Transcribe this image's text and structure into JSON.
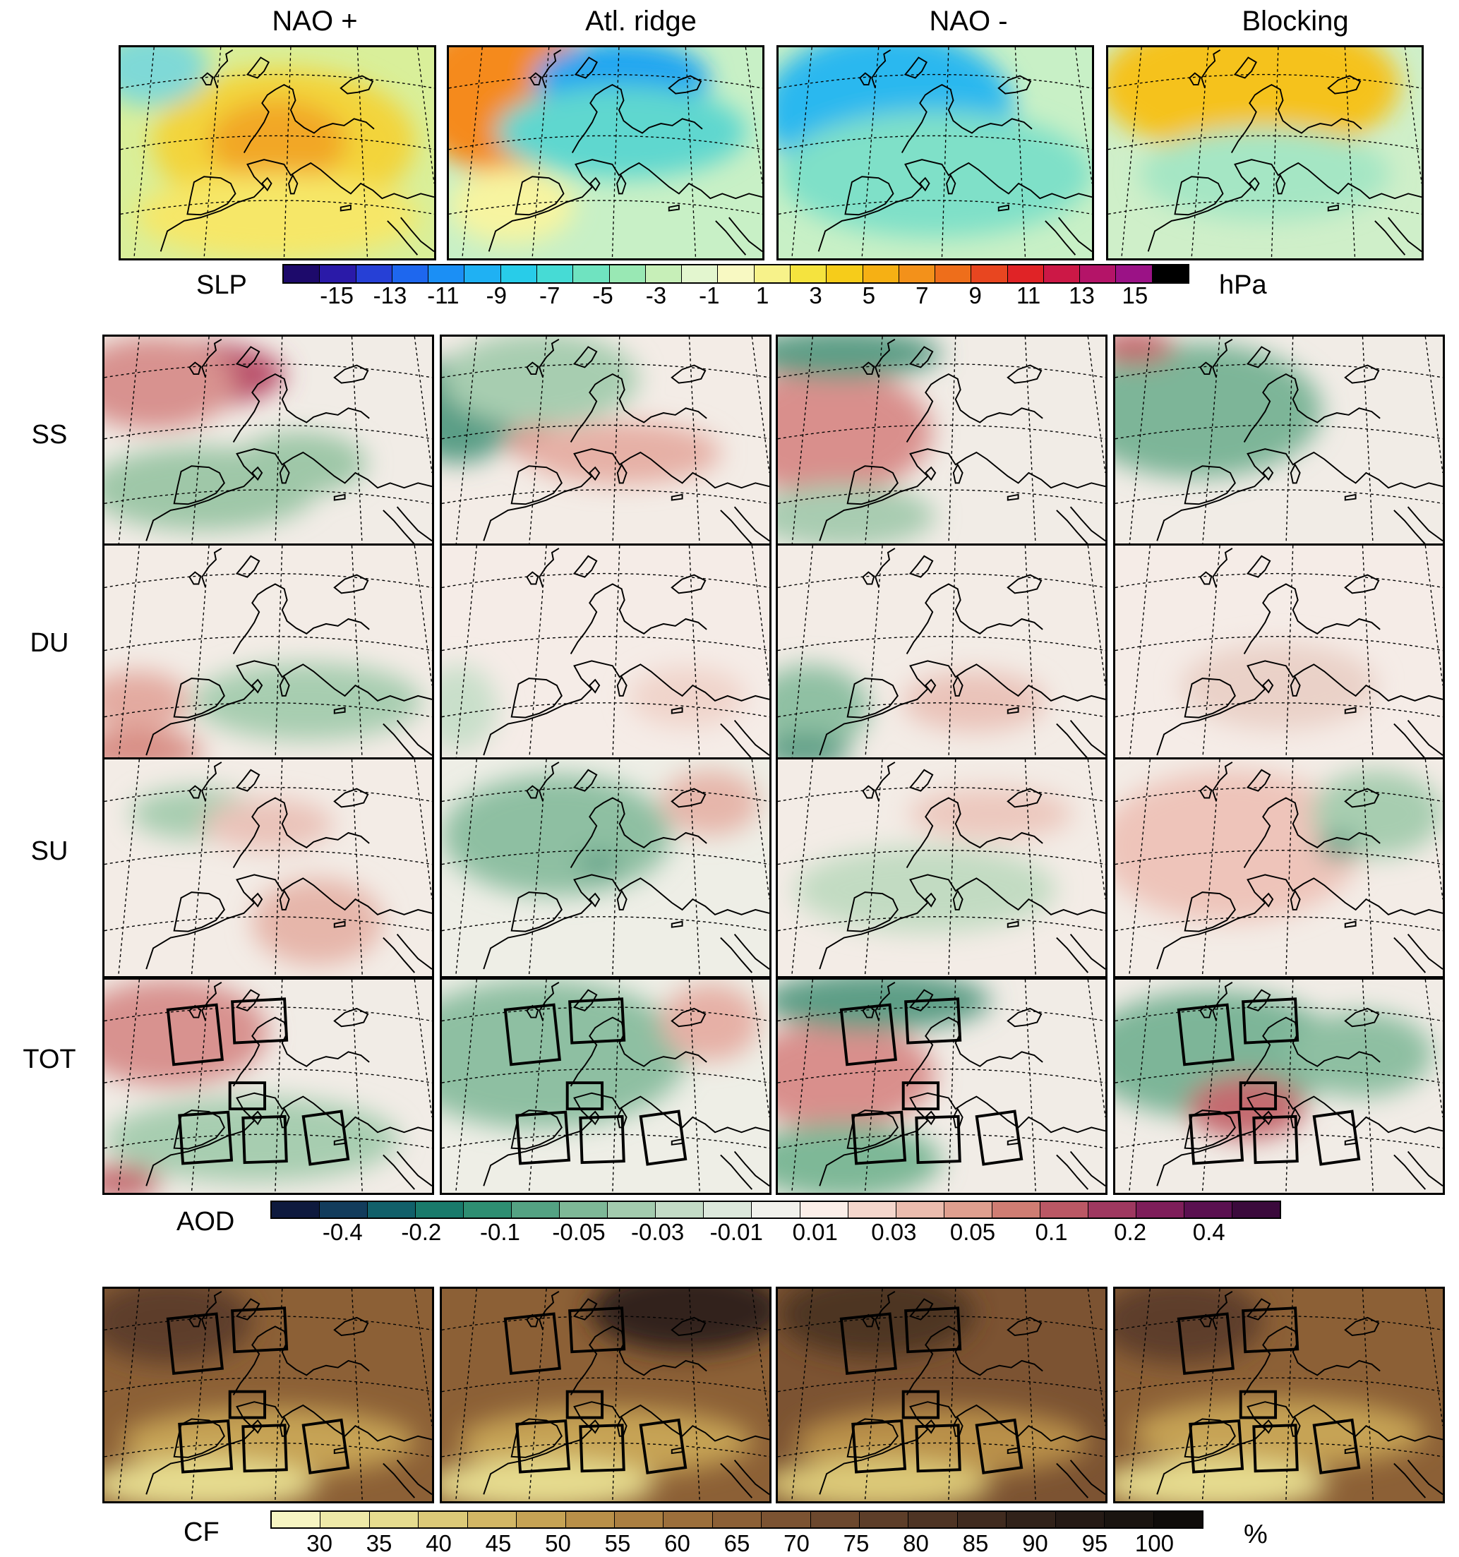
{
  "columns": [
    "NAO +",
    "Atl. ridge",
    "NAO -",
    "Blocking"
  ],
  "rows": [
    "SS",
    "DU",
    "SU",
    "TOT"
  ],
  "slp_colorbar": {
    "label": "SLP",
    "unit": "hPa",
    "ticks": [
      "-15",
      "-13",
      "-11",
      "-9",
      "-7",
      "-5",
      "-3",
      "-1",
      "1",
      "3",
      "5",
      "7",
      "9",
      "11",
      "13",
      "15"
    ],
    "colors": [
      "#1d0a6b",
      "#2a1aa8",
      "#2640d6",
      "#1e67ee",
      "#1b8ff5",
      "#1fb1f3",
      "#28cce9",
      "#46dbd5",
      "#6fe3c0",
      "#99e8b4",
      "#c7efb8",
      "#e3f6cf",
      "#f8f9c2",
      "#f7f28a",
      "#f5e33e",
      "#f6cc1a",
      "#f6b014",
      "#f3911a",
      "#ee6e1b",
      "#e84620",
      "#e02326",
      "#cc1846",
      "#b41468",
      "#9b1286",
      "#000000"
    ]
  },
  "aod_colorbar": {
    "label": "AOD",
    "ticks": [
      "-0.4",
      "-0.2",
      "-0.1",
      "-0.05",
      "-0.03",
      "-0.01",
      "0.01",
      "0.03",
      "0.05",
      "0.1",
      "0.2",
      "0.4"
    ],
    "colors": [
      "#0e1a3e",
      "#123c5c",
      "#11606a",
      "#197a6b",
      "#2e8e72",
      "#54a283",
      "#7eb897",
      "#a3cbae",
      "#c3dbc6",
      "#dce8dc",
      "#f1f1ec",
      "#fbeee8",
      "#f4d6cc",
      "#ebbcae",
      "#df9f8f",
      "#cf7d73",
      "#bb5865",
      "#9e3860",
      "#7e1e5a",
      "#5a1050",
      "#3b0a3c"
    ]
  },
  "cf_colorbar": {
    "label": "CF",
    "unit": "%",
    "ticks": [
      "30",
      "35",
      "40",
      "45",
      "50",
      "55",
      "60",
      "65",
      "70",
      "75",
      "80",
      "85",
      "90",
      "95",
      "100"
    ],
    "colors": [
      "#f6f4c2",
      "#eee9a8",
      "#e6dc8f",
      "#dcc978",
      "#d2b665",
      "#c6a355",
      "#b99049",
      "#ab7f41",
      "#9c6f3b",
      "#8c6036",
      "#7c5332",
      "#6c482e",
      "#5d3e29",
      "#4e3424",
      "#402b1f",
      "#31221a",
      "#251a15",
      "#1a1410",
      "#0f0c0a"
    ]
  },
  "panel_fields": {
    "slp": [
      {
        "bg": "#d9ef9a",
        "blobs": [
          [
            "#f3d43a",
            0.52,
            0.45,
            0.42,
            0.35
          ],
          [
            "#f2a726",
            0.5,
            0.45,
            0.22,
            0.2
          ],
          [
            "#7fd9d7",
            0.1,
            0.1,
            0.18,
            0.18
          ],
          [
            "#f6e768",
            0.5,
            0.8,
            0.45,
            0.2
          ]
        ]
      },
      {
        "bg": "#c8f0c6",
        "blobs": [
          [
            "#d91d2a",
            0.18,
            0.18,
            0.18,
            0.28
          ],
          [
            "#f58a1a",
            0.18,
            0.22,
            0.3,
            0.38
          ],
          [
            "#1fa4f2",
            0.55,
            0.15,
            0.28,
            0.18
          ],
          [
            "#5fd7cf",
            0.55,
            0.4,
            0.4,
            0.22
          ],
          [
            "#f7f4a0",
            0.2,
            0.75,
            0.2,
            0.18
          ]
        ]
      },
      {
        "bg": "#c8f0c6",
        "blobs": [
          [
            "#1a1780",
            0.22,
            0.25,
            0.14,
            0.17
          ],
          [
            "#2050d8",
            0.25,
            0.27,
            0.26,
            0.3
          ],
          [
            "#2ab8ef",
            0.35,
            0.3,
            0.4,
            0.38
          ],
          [
            "#7fe0c8",
            0.5,
            0.6,
            0.5,
            0.3
          ]
        ]
      },
      {
        "bg": "#cfefc9",
        "blobs": [
          [
            "#000000",
            0.43,
            0.06,
            0.09,
            0.1
          ],
          [
            "#b01466",
            0.45,
            0.08,
            0.22,
            0.18
          ],
          [
            "#e33024",
            0.45,
            0.12,
            0.36,
            0.26
          ],
          [
            "#f5c21a",
            0.45,
            0.18,
            0.48,
            0.34
          ],
          [
            "#a5e6c4",
            0.5,
            0.6,
            0.4,
            0.22
          ]
        ]
      }
    ],
    "ss": [
      {
        "bg": "#f1ece6",
        "blobs": [
          [
            "#b9506b",
            0.25,
            0.18,
            0.3,
            0.16
          ],
          [
            "#d8928f",
            0.15,
            0.22,
            0.25,
            0.22
          ],
          [
            "#9fc7a8",
            0.3,
            0.72,
            0.35,
            0.2
          ],
          [
            "#9fc7a8",
            0.6,
            0.6,
            0.2,
            0.15
          ]
        ]
      },
      {
        "bg": "#f3ece6",
        "blobs": [
          [
            "#5a9e86",
            0.05,
            0.35,
            0.18,
            0.25
          ],
          [
            "#a7cdb0",
            0.3,
            0.2,
            0.3,
            0.22
          ],
          [
            "#d88e85",
            0.3,
            0.5,
            0.1,
            0.08
          ],
          [
            "#e6b0a6",
            0.55,
            0.55,
            0.3,
            0.15
          ]
        ]
      },
      {
        "bg": "#f1ece6",
        "blobs": [
          [
            "#b54d65",
            0.12,
            0.45,
            0.22,
            0.18
          ],
          [
            "#d98f8c",
            0.15,
            0.45,
            0.32,
            0.3
          ],
          [
            "#5d9e86",
            0.2,
            0.08,
            0.3,
            0.12
          ],
          [
            "#a8ccb1",
            0.2,
            0.85,
            0.28,
            0.15
          ]
        ]
      },
      {
        "bg": "#f1ece6",
        "blobs": [
          [
            "#2f7d70",
            0.28,
            0.32,
            0.26,
            0.22
          ],
          [
            "#7db598",
            0.25,
            0.35,
            0.38,
            0.32
          ],
          [
            "#c46b6f",
            0.06,
            0.05,
            0.12,
            0.08
          ]
        ]
      }
    ],
    "du": [
      {
        "bg": "#f3ece6",
        "blobs": [
          [
            "#5d9e86",
            0.62,
            0.78,
            0.2,
            0.12
          ],
          [
            "#a7cdb0",
            0.62,
            0.72,
            0.35,
            0.18
          ],
          [
            "#e3aaa0",
            0.1,
            0.72,
            0.16,
            0.14
          ],
          [
            "#d88e85",
            0.1,
            0.95,
            0.2,
            0.1
          ]
        ]
      },
      {
        "bg": "#f5ece7",
        "blobs": [
          [
            "#c9dfca",
            0.05,
            0.75,
            0.12,
            0.2
          ],
          [
            "#f0d4cb",
            0.75,
            0.7,
            0.18,
            0.14
          ]
        ]
      },
      {
        "bg": "#f3ece6",
        "blobs": [
          [
            "#8fc0a3",
            0.1,
            0.75,
            0.18,
            0.2
          ],
          [
            "#5d9e86",
            0.08,
            0.95,
            0.14,
            0.08
          ],
          [
            "#eac3b9",
            0.6,
            0.72,
            0.22,
            0.14
          ]
        ]
      },
      {
        "bg": "#f5ece7",
        "blobs": [
          [
            "#ead1c8",
            0.5,
            0.65,
            0.3,
            0.2
          ]
        ]
      }
    ],
    "su": [
      {
        "bg": "#f3ece6",
        "blobs": [
          [
            "#a7cdb0",
            0.28,
            0.25,
            0.2,
            0.12
          ],
          [
            "#e6b6aa",
            0.65,
            0.75,
            0.2,
            0.2
          ],
          [
            "#eac3b9",
            0.5,
            0.3,
            0.2,
            0.12
          ]
        ]
      },
      {
        "bg": "#eeeee6",
        "blobs": [
          [
            "#8ebfa2",
            0.35,
            0.35,
            0.35,
            0.28
          ],
          [
            "#e6b6aa",
            0.82,
            0.2,
            0.15,
            0.15
          ],
          [
            "#5d9e86",
            0.48,
            0.48,
            0.06,
            0.05
          ]
        ]
      },
      {
        "bg": "#f3ece6",
        "blobs": [
          [
            "#c2dbc2",
            0.45,
            0.6,
            0.4,
            0.2
          ],
          [
            "#ecc8be",
            0.65,
            0.25,
            0.25,
            0.12
          ]
        ]
      },
      {
        "bg": "#f3ece6",
        "blobs": [
          [
            "#d88e85",
            0.4,
            0.35,
            0.3,
            0.2
          ],
          [
            "#eec4ba",
            0.35,
            0.4,
            0.4,
            0.35
          ],
          [
            "#a7cdb0",
            0.8,
            0.25,
            0.2,
            0.2
          ],
          [
            "#5d9e86",
            0.68,
            0.4,
            0.06,
            0.06
          ]
        ]
      }
    ],
    "tot": [
      {
        "bg": "#f1ece6",
        "blobs": [
          [
            "#b9506b",
            0.15,
            0.2,
            0.22,
            0.16
          ],
          [
            "#d8928f",
            0.2,
            0.25,
            0.3,
            0.25
          ],
          [
            "#a7cdb0",
            0.45,
            0.75,
            0.45,
            0.2
          ],
          [
            "#c46b6f",
            0.05,
            0.95,
            0.12,
            0.08
          ]
        ]
      },
      {
        "bg": "#eeeee6",
        "blobs": [
          [
            "#3f8f7a",
            0.2,
            0.35,
            0.22,
            0.25
          ],
          [
            "#8ebfa2",
            0.3,
            0.35,
            0.45,
            0.35
          ],
          [
            "#e6b0a6",
            0.82,
            0.2,
            0.15,
            0.18
          ]
        ]
      },
      {
        "bg": "#f1ece6",
        "blobs": [
          [
            "#b54d65",
            0.12,
            0.45,
            0.2,
            0.14
          ],
          [
            "#d98f8c",
            0.18,
            0.45,
            0.3,
            0.25
          ],
          [
            "#5d9e86",
            0.3,
            0.1,
            0.35,
            0.14
          ],
          [
            "#7eb897",
            0.2,
            0.85,
            0.3,
            0.18
          ]
        ]
      },
      {
        "bg": "#f1ece6",
        "blobs": [
          [
            "#2f7d70",
            0.3,
            0.32,
            0.28,
            0.22
          ],
          [
            "#7db598",
            0.3,
            0.35,
            0.4,
            0.3
          ],
          [
            "#c46b6f",
            0.4,
            0.6,
            0.18,
            0.15
          ],
          [
            "#8ebfa2",
            0.75,
            0.35,
            0.22,
            0.2
          ]
        ]
      }
    ],
    "cf": [
      {
        "bg": "#8c6036",
        "blobs": [
          [
            "#c6a355",
            0.5,
            0.72,
            0.45,
            0.16
          ],
          [
            "#e6dc8f",
            0.3,
            0.92,
            0.35,
            0.12
          ],
          [
            "#5d3e29",
            0.2,
            0.15,
            0.25,
            0.2
          ]
        ]
      },
      {
        "bg": "#8c6036",
        "blobs": [
          [
            "#c6a355",
            0.5,
            0.72,
            0.45,
            0.16
          ],
          [
            "#e6dc8f",
            0.3,
            0.92,
            0.35,
            0.12
          ],
          [
            "#31221a",
            0.75,
            0.1,
            0.3,
            0.2
          ]
        ]
      },
      {
        "bg": "#7c5332",
        "blobs": [
          [
            "#b99049",
            0.5,
            0.72,
            0.45,
            0.16
          ],
          [
            "#dcc978",
            0.3,
            0.92,
            0.35,
            0.12
          ],
          [
            "#4e3424",
            0.3,
            0.12,
            0.3,
            0.2
          ]
        ]
      },
      {
        "bg": "#8c6036",
        "blobs": [
          [
            "#c6a355",
            0.5,
            0.68,
            0.45,
            0.16
          ],
          [
            "#e6dc8f",
            0.3,
            0.92,
            0.35,
            0.12
          ],
          [
            "#5d3e29",
            0.2,
            0.15,
            0.25,
            0.2
          ]
        ]
      }
    ]
  }
}
